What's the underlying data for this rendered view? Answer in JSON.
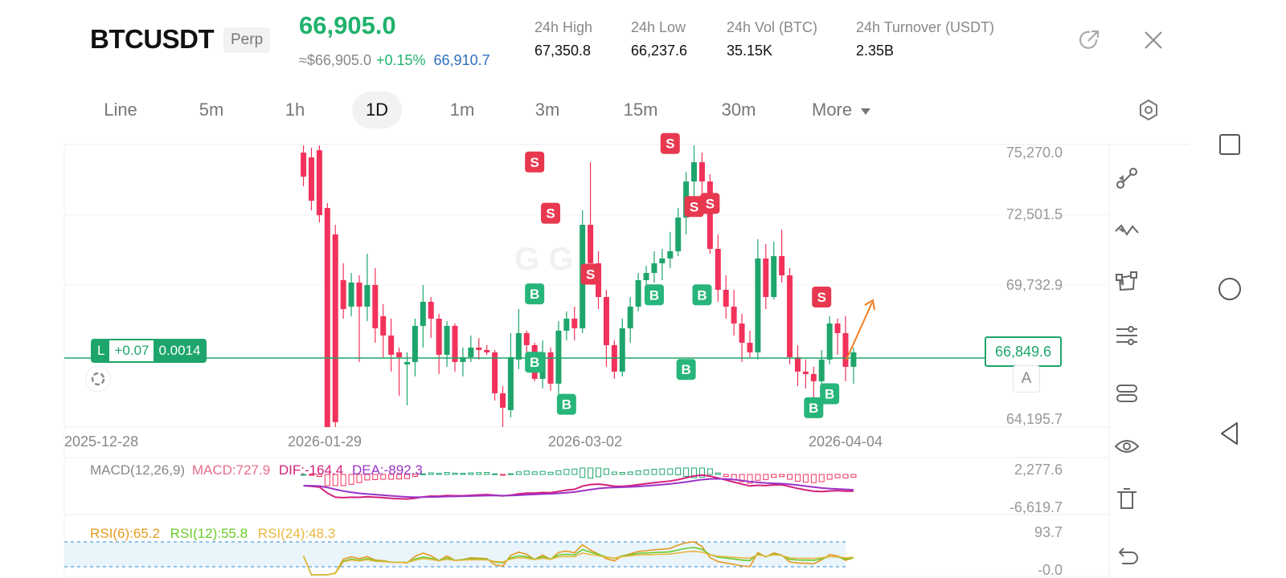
{
  "header": {
    "symbol": "BTCUSDT",
    "contract_type": "Perp",
    "last_price": "66,905.0",
    "fiat_price": "≈$66,905.0",
    "change_pct": "+0.15%",
    "mark_price": "66,910.7",
    "stats": [
      {
        "label": "24h  High",
        "value": "67,350.8"
      },
      {
        "label": "24h  Low",
        "value": "66,237.6"
      },
      {
        "label": "24h  Vol (BTC)",
        "value": "35.15K"
      },
      {
        "label": "24h  Turnover (USDT)",
        "value": "2.35B"
      }
    ]
  },
  "tabs": [
    {
      "label": "Line",
      "active": false
    },
    {
      "label": "5m",
      "active": false
    },
    {
      "label": "1h",
      "active": false
    },
    {
      "label": "1D",
      "active": true
    },
    {
      "label": "1m",
      "active": false
    },
    {
      "label": "3m",
      "active": false
    },
    {
      "label": "15m",
      "active": false
    },
    {
      "label": "30m",
      "active": false
    },
    {
      "label": "More",
      "active": false
    }
  ],
  "position": {
    "side": "L",
    "pnl": "+0.07",
    "size": "0.0014"
  },
  "current_price_tag": "66,849.6",
  "auto_scale_label": "A",
  "indicators": {
    "macd_label": "MACD(12,26,9)",
    "macd_value": "MACD:727.9",
    "dif": "DIF:-164.4",
    "dea": "DEA:-892.3",
    "rsi6": "RSI(6):65.2",
    "rsi12": "RSI(12):55.8",
    "rsi24": "RSI(24):48.3"
  },
  "colors": {
    "up": "#1ea56b",
    "down": "#f2325a",
    "dif_line": "#d41f7a",
    "dea_line": "#9b33c7",
    "rsi6": "#e59a20",
    "rsi12": "#6acb2a",
    "rsi24": "#e8b840"
  },
  "icons": [
    "share-icon",
    "close-icon",
    "settings-icon",
    "draw-line-icon",
    "wave-tool-icon",
    "shape-tool-icon",
    "sliders-icon",
    "indicators-icon",
    "eye-icon",
    "trash-icon",
    "undo-icon"
  ],
  "chart_data": {
    "type": "candlestick",
    "price_axis_ticks": [
      "75,270.0",
      "72,501.5",
      "69,732.9",
      "64,195.7"
    ],
    "date_ticks": [
      "2025-12-28",
      "2026-01-29",
      "2026-03-02",
      "2026-04-04"
    ],
    "current_price": 66849.6,
    "macd_axis_ticks": [
      "2,277.6",
      "-6,619.7"
    ],
    "rsi_axis_ticks": [
      "93.7",
      "-0.0"
    ],
    "trade_markers": {
      "buy": [
        {
          "date": "2026-02-25",
          "price": 69330
        },
        {
          "date": "2026-02-25",
          "price": 66490
        },
        {
          "date": "2026-03-01",
          "price": 64740
        },
        {
          "date": "2026-03-12",
          "price": 69290
        },
        {
          "date": "2026-03-16",
          "price": 66190
        },
        {
          "date": "2026-03-18",
          "price": 69290
        },
        {
          "date": "2026-04-01",
          "price": 64600
        },
        {
          "date": "2026-04-03",
          "price": 65180
        }
      ],
      "sell": [
        {
          "date": "2026-02-25",
          "price": 74810
        },
        {
          "date": "2026-02-27",
          "price": 72680
        },
        {
          "date": "2026-03-04",
          "price": 70150
        },
        {
          "date": "2026-03-14",
          "price": 75580
        },
        {
          "date": "2026-03-17",
          "price": 72960
        },
        {
          "date": "2026-03-19",
          "price": 73090
        },
        {
          "date": "2026-04-02",
          "price": 69200
        }
      ]
    },
    "candles": [
      {
        "date": "2026-01-27",
        "o": 75200,
        "h": 75500,
        "l": 73800,
        "c": 74200
      },
      {
        "date": "2026-01-28",
        "o": 75000,
        "h": 75400,
        "l": 72800,
        "c": 73200
      },
      {
        "date": "2026-01-29",
        "o": 75300,
        "h": 75500,
        "l": 72300,
        "c": 72600
      },
      {
        "date": "2026-01-30",
        "o": 72900,
        "h": 73100,
        "l": 62800,
        "c": 63200
      },
      {
        "date": "2026-01-31",
        "o": 71800,
        "h": 72200,
        "l": 63000,
        "c": 64000
      },
      {
        "date": "2026-02-01",
        "o": 69900,
        "h": 70600,
        "l": 68300,
        "c": 68700
      },
      {
        "date": "2026-02-02",
        "o": 68800,
        "h": 70200,
        "l": 68400,
        "c": 69800
      },
      {
        "date": "2026-02-03",
        "o": 69800,
        "h": 70100,
        "l": 66500,
        "c": 68800
      },
      {
        "date": "2026-02-04",
        "o": 68800,
        "h": 71000,
        "l": 68200,
        "c": 69700
      },
      {
        "date": "2026-02-05",
        "o": 69700,
        "h": 70400,
        "l": 67300,
        "c": 67900
      },
      {
        "date": "2026-02-06",
        "o": 68400,
        "h": 68900,
        "l": 66700,
        "c": 67600
      },
      {
        "date": "2026-02-07",
        "o": 67600,
        "h": 68300,
        "l": 66100,
        "c": 66800
      },
      {
        "date": "2026-02-08",
        "o": 66900,
        "h": 67100,
        "l": 65100,
        "c": 66700
      },
      {
        "date": "2026-02-09",
        "o": 66400,
        "h": 66900,
        "l": 64700,
        "c": 66500
      },
      {
        "date": "2026-02-10",
        "o": 66500,
        "h": 68300,
        "l": 65900,
        "c": 68000
      },
      {
        "date": "2026-02-11",
        "o": 68000,
        "h": 69700,
        "l": 67100,
        "c": 69000
      },
      {
        "date": "2026-02-12",
        "o": 69000,
        "h": 69200,
        "l": 67500,
        "c": 68300
      },
      {
        "date": "2026-02-13",
        "o": 68300,
        "h": 68500,
        "l": 66000,
        "c": 66800
      },
      {
        "date": "2026-02-14",
        "o": 66800,
        "h": 68200,
        "l": 66300,
        "c": 68000
      },
      {
        "date": "2026-02-15",
        "o": 68000,
        "h": 68100,
        "l": 66100,
        "c": 66500
      },
      {
        "date": "2026-02-16",
        "o": 66500,
        "h": 67100,
        "l": 65900,
        "c": 66700
      },
      {
        "date": "2026-02-17",
        "o": 66700,
        "h": 67600,
        "l": 66500,
        "c": 67100
      },
      {
        "date": "2026-02-18",
        "o": 67100,
        "h": 67500,
        "l": 66600,
        "c": 67000
      },
      {
        "date": "2026-02-19",
        "o": 67000,
        "h": 67200,
        "l": 66800,
        "c": 66900
      },
      {
        "date": "2026-02-20",
        "o": 66900,
        "h": 67000,
        "l": 64900,
        "c": 65200
      },
      {
        "date": "2026-02-21",
        "o": 65200,
        "h": 65500,
        "l": 63800,
        "c": 64600
      },
      {
        "date": "2026-02-22",
        "o": 64500,
        "h": 67700,
        "l": 64200,
        "c": 66700
      },
      {
        "date": "2026-02-23",
        "o": 66600,
        "h": 68700,
        "l": 66200,
        "c": 67700
      },
      {
        "date": "2026-02-24",
        "o": 67700,
        "h": 67800,
        "l": 66300,
        "c": 67200
      },
      {
        "date": "2026-02-25",
        "o": 67200,
        "h": 67300,
        "l": 65700,
        "c": 65800
      },
      {
        "date": "2026-02-26",
        "o": 65800,
        "h": 67400,
        "l": 65400,
        "c": 66900
      },
      {
        "date": "2026-02-27",
        "o": 66900,
        "h": 67100,
        "l": 65300,
        "c": 65600
      },
      {
        "date": "2026-02-28",
        "o": 65600,
        "h": 68200,
        "l": 65100,
        "c": 67800
      },
      {
        "date": "2026-03-01",
        "o": 67800,
        "h": 68600,
        "l": 67400,
        "c": 68300
      },
      {
        "date": "2026-03-02",
        "o": 68300,
        "h": 68800,
        "l": 67400,
        "c": 67900
      },
      {
        "date": "2026-03-03",
        "o": 67900,
        "h": 72800,
        "l": 67700,
        "c": 72200
      },
      {
        "date": "2026-03-04",
        "o": 72200,
        "h": 74800,
        "l": 70200,
        "c": 70600
      },
      {
        "date": "2026-03-05",
        "o": 70600,
        "h": 71100,
        "l": 68700,
        "c": 69200
      },
      {
        "date": "2026-03-06",
        "o": 69200,
        "h": 69500,
        "l": 66300,
        "c": 67200
      },
      {
        "date": "2026-03-07",
        "o": 67200,
        "h": 67400,
        "l": 65800,
        "c": 66100
      },
      {
        "date": "2026-03-08",
        "o": 66100,
        "h": 68300,
        "l": 65900,
        "c": 67900
      },
      {
        "date": "2026-03-09",
        "o": 67900,
        "h": 69200,
        "l": 67300,
        "c": 68800
      },
      {
        "date": "2026-03-10",
        "o": 68800,
        "h": 70200,
        "l": 68600,
        "c": 69900
      },
      {
        "date": "2026-03-11",
        "o": 69900,
        "h": 70500,
        "l": 69600,
        "c": 70200
      },
      {
        "date": "2026-03-12",
        "o": 70200,
        "h": 71100,
        "l": 69800,
        "c": 70600
      },
      {
        "date": "2026-03-13",
        "o": 70600,
        "h": 71200,
        "l": 69900,
        "c": 70800
      },
      {
        "date": "2026-03-14",
        "o": 70800,
        "h": 71900,
        "l": 70400,
        "c": 71100
      },
      {
        "date": "2026-03-15",
        "o": 71100,
        "h": 72900,
        "l": 70900,
        "c": 72500
      },
      {
        "date": "2026-03-16",
        "o": 72500,
        "h": 74400,
        "l": 71800,
        "c": 74000
      },
      {
        "date": "2026-03-17",
        "o": 74000,
        "h": 75500,
        "l": 73200,
        "c": 74800
      },
      {
        "date": "2026-03-18",
        "o": 74800,
        "h": 75200,
        "l": 73500,
        "c": 74000
      },
      {
        "date": "2026-03-19",
        "o": 74000,
        "h": 74300,
        "l": 71000,
        "c": 71200
      },
      {
        "date": "2026-03-20",
        "o": 71200,
        "h": 71800,
        "l": 69000,
        "c": 69500
      },
      {
        "date": "2026-03-21",
        "o": 69500,
        "h": 70100,
        "l": 68300,
        "c": 68800
      },
      {
        "date": "2026-03-22",
        "o": 68800,
        "h": 69500,
        "l": 67600,
        "c": 68100
      },
      {
        "date": "2026-03-23",
        "o": 68100,
        "h": 68500,
        "l": 66500,
        "c": 67300
      },
      {
        "date": "2026-03-24",
        "o": 67300,
        "h": 67800,
        "l": 66700,
        "c": 66900
      },
      {
        "date": "2026-03-25",
        "o": 66900,
        "h": 71600,
        "l": 66600,
        "c": 70800
      },
      {
        "date": "2026-03-26",
        "o": 70800,
        "h": 71400,
        "l": 68700,
        "c": 69200
      },
      {
        "date": "2026-03-27",
        "o": 69200,
        "h": 71500,
        "l": 69100,
        "c": 70900
      },
      {
        "date": "2026-03-28",
        "o": 70900,
        "h": 72000,
        "l": 69800,
        "c": 70100
      },
      {
        "date": "2026-03-29",
        "o": 70100,
        "h": 70400,
        "l": 66400,
        "c": 66700
      },
      {
        "date": "2026-03-30",
        "o": 66700,
        "h": 67200,
        "l": 65500,
        "c": 66100
      },
      {
        "date": "2026-03-31",
        "o": 66100,
        "h": 66600,
        "l": 65400,
        "c": 66000
      },
      {
        "date": "2026-04-01",
        "o": 66000,
        "h": 66300,
        "l": 64700,
        "c": 65700
      },
      {
        "date": "2026-04-02",
        "o": 65700,
        "h": 67000,
        "l": 65400,
        "c": 66600
      },
      {
        "date": "2026-04-03",
        "o": 66600,
        "h": 68400,
        "l": 66400,
        "c": 68100
      },
      {
        "date": "2026-04-04",
        "o": 68100,
        "h": 68300,
        "l": 66800,
        "c": 67700
      },
      {
        "date": "2026-04-05",
        "o": 67700,
        "h": 68400,
        "l": 65700,
        "c": 66300
      },
      {
        "date": "2026-04-06",
        "o": 66300,
        "h": 67100,
        "l": 65600,
        "c": 66900
      }
    ]
  }
}
